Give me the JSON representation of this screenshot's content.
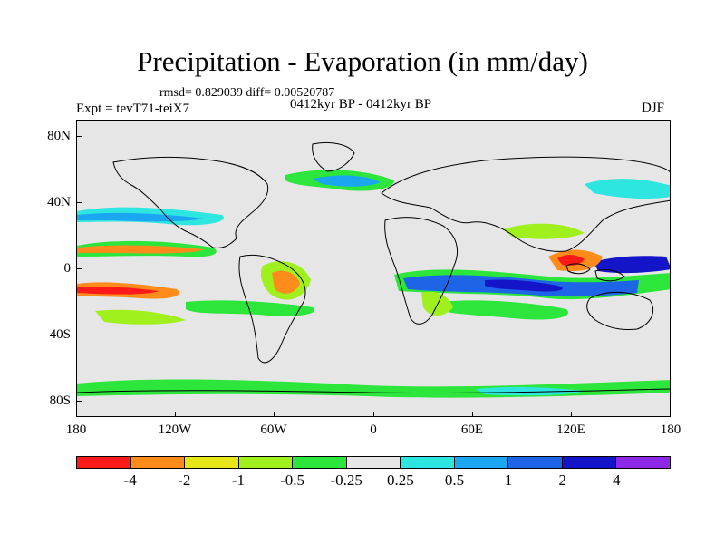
{
  "title": "Precipitation - Evaporation (in mm/day)",
  "stats": "rmsd= 0.829039 diff= 0.00520787",
  "period": "0412kyr BP - 0412kyr BP",
  "experiment": "Expt = tevT71-teiX7",
  "season": "DJF",
  "map": {
    "lat_range": [
      -90,
      90
    ],
    "lon_range": [
      -180,
      180
    ],
    "lat_labels": [
      "80N",
      "40N",
      "0",
      "40S",
      "80S"
    ],
    "lat_values": [
      80,
      40,
      0,
      -40,
      -80
    ],
    "lon_labels": [
      "180",
      "120W",
      "60W",
      "0",
      "60E",
      "120E",
      "180"
    ],
    "lon_values": [
      -180,
      -120,
      -60,
      0,
      60,
      120,
      180
    ],
    "background_color": "#e6e6e6"
  },
  "colorbar": {
    "colors": [
      "#ff1a1a",
      "#ff8c1a",
      "#e6e619",
      "#a0f01e",
      "#2ce63c",
      "#e6e6e6",
      "#2ee6e0",
      "#1aa6f0",
      "#1e64e6",
      "#1414c8",
      "#8c28e6"
    ],
    "labels": [
      "-4",
      "-2",
      "-1",
      "-0.5",
      "-0.25",
      "0.25",
      "0.5",
      "1",
      "2",
      "4"
    ]
  }
}
